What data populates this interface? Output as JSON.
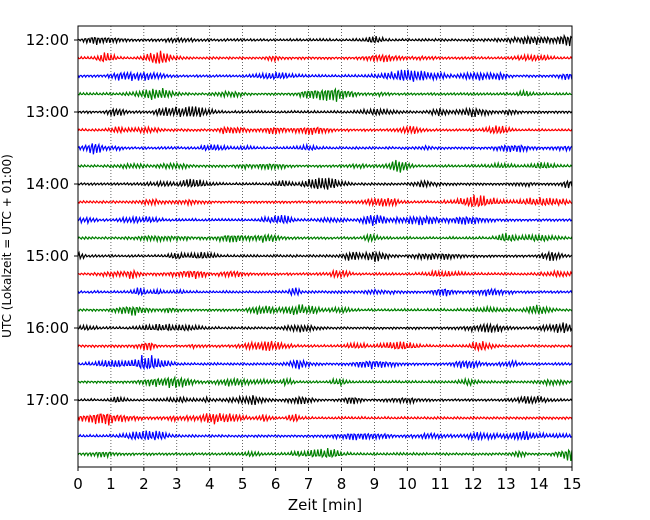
{
  "chart_data": {
    "type": "line",
    "title": "",
    "xlabel": "Zeit  [min]",
    "ylabel": "UTC (Lokalzeit = UTC + 01:00)",
    "xlim": [
      0,
      15
    ],
    "x_ticks": [
      "0",
      "1",
      "2",
      "3",
      "4",
      "5",
      "6",
      "7",
      "8",
      "9",
      "10",
      "11",
      "12",
      "13",
      "14",
      "15"
    ],
    "y_ticks": [
      "12:00",
      "13:00",
      "14:00",
      "15:00",
      "16:00",
      "17:00"
    ],
    "grid": "vertical dotted lines at each minute",
    "trace_colors": [
      "#000000",
      "#ff0000",
      "#0000ff",
      "#008000"
    ],
    "traces": [
      {
        "start": "12:00"
      },
      {
        "start": "12:15"
      },
      {
        "start": "12:30"
      },
      {
        "start": "12:45"
      },
      {
        "start": "13:00"
      },
      {
        "start": "13:15"
      },
      {
        "start": "13:30"
      },
      {
        "start": "13:45"
      },
      {
        "start": "14:00"
      },
      {
        "start": "14:15"
      },
      {
        "start": "14:30"
      },
      {
        "start": "14:45"
      },
      {
        "start": "15:00"
      },
      {
        "start": "15:15"
      },
      {
        "start": "15:30"
      },
      {
        "start": "15:45"
      },
      {
        "start": "16:00"
      },
      {
        "start": "16:15"
      },
      {
        "start": "16:30"
      },
      {
        "start": "16:45"
      },
      {
        "start": "17:00"
      },
      {
        "start": "17:15"
      },
      {
        "start": "17:30"
      },
      {
        "start": "17:45"
      }
    ]
  }
}
